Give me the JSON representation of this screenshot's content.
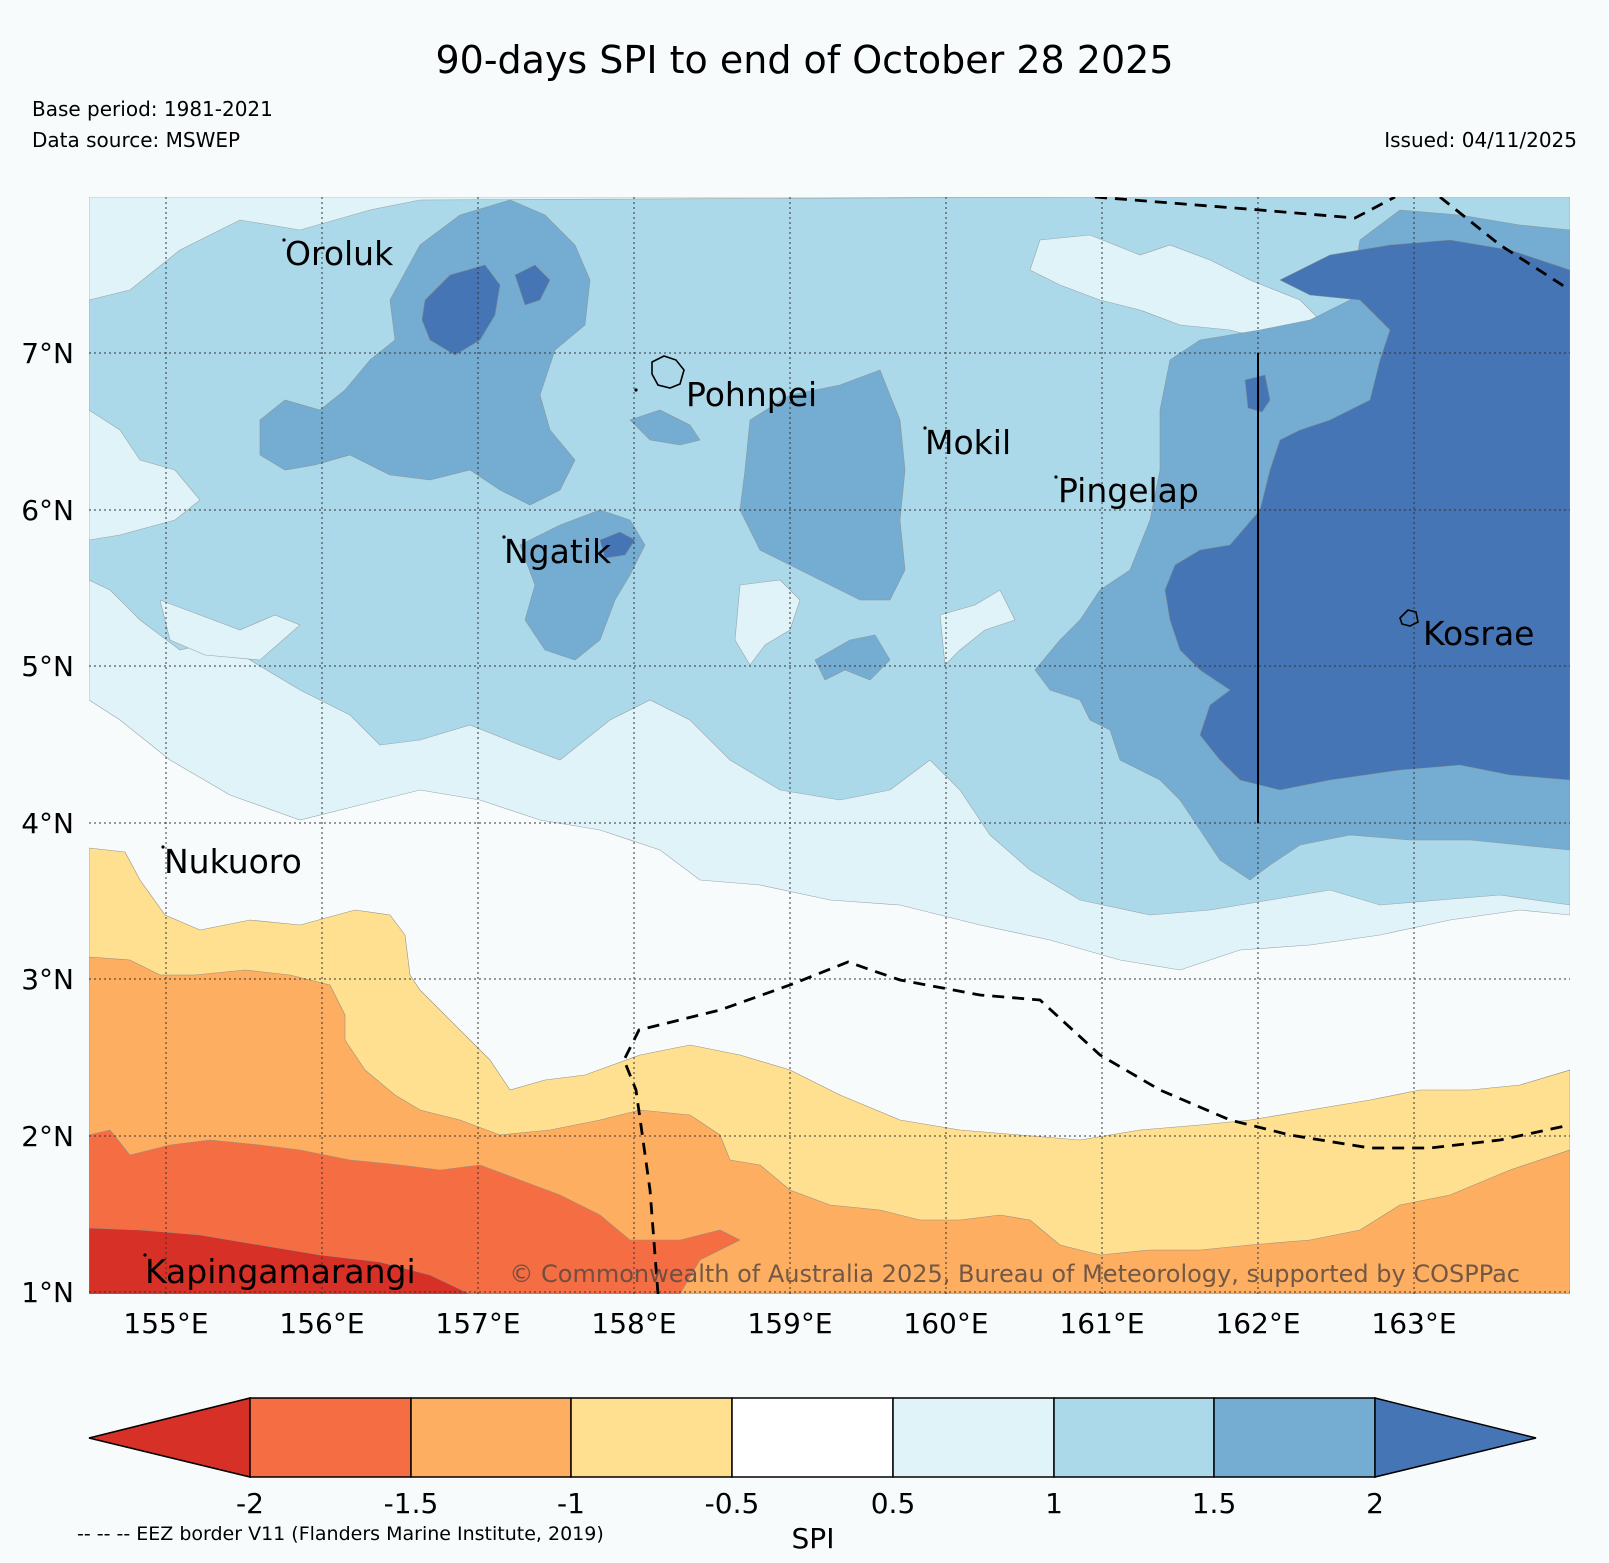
{
  "title": "90-days SPI to end of October 28 2025",
  "base_period": "Base period: 1981-2021",
  "data_source": "Data source: MSWEP",
  "issued": "Issued: 04/11/2025",
  "copyright": "© Commonwealth of Australia 2025, Bureau of Meteorology, supported by COSPPac",
  "eez_note": "-- -- -- EEZ border V11 (Flanders Marine Institute, 2019)",
  "lon_labels": [
    "155°E",
    "156°E",
    "157°E",
    "158°E",
    "159°E",
    "160°E",
    "161°E",
    "162°E",
    "163°E"
  ],
  "lat_labels": [
    "1°N",
    "2°N",
    "3°N",
    "4°N",
    "5°N",
    "6°N",
    "7°N"
  ],
  "places": [
    {
      "name": "Oroluk",
      "lon": 155.75,
      "lat": 7.67
    },
    {
      "name": "Pohnpei",
      "lon": 158.2,
      "lat": 6.88
    },
    {
      "name": "Mokil",
      "lon": 159.78,
      "lat": 6.68
    },
    {
      "name": "Pingelap",
      "lon": 160.7,
      "lat": 6.22
    },
    {
      "name": "Ngatik",
      "lon": 157.18,
      "lat": 5.8
    },
    {
      "name": "Kosrae",
      "lon": 162.98,
      "lat": 5.32
    },
    {
      "name": "Nukuoro",
      "lon": 154.97,
      "lat": 3.85
    },
    {
      "name": "Kapingamarangi",
      "lon": 154.78,
      "lat": 1.07
    }
  ],
  "colorbar": {
    "label": "SPI",
    "ticks": [
      "-2",
      "-1.5",
      "-1",
      "-0.5",
      "0.5",
      "1",
      "1.5",
      "2"
    ],
    "colors": [
      "#d73027",
      "#f46d43",
      "#fdae61",
      "#fee090",
      "#f7fbfc",
      "#e0f3f8",
      "#abd9e9",
      "#74add1",
      "#4575b4"
    ]
  },
  "extent": {
    "lon_min": 154.5,
    "lon_max": 164.0,
    "lat_min": 1.0,
    "lat_max": 8.0
  }
}
